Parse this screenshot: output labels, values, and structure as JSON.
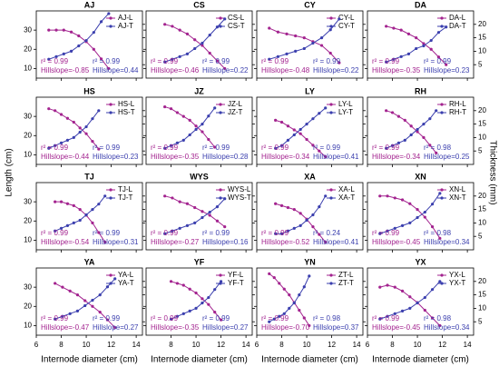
{
  "axis_labels": {
    "y": "Length (cm)",
    "y2": "Thickness (mm)",
    "x": "Internode diameter (cm)"
  },
  "chart_data": [
    {
      "type": "line",
      "title": "AJ",
      "x": [
        7,
        7.6,
        8.2,
        8.8,
        9.4,
        10,
        10.6,
        11.2,
        11.8
      ],
      "series": [
        {
          "name": "AJ-L",
          "color": "#a3238f",
          "values": [
            30,
            30,
            30,
            29,
            27,
            24,
            20,
            15,
            10
          ]
        },
        {
          "name": "AJ-T",
          "color": "#3b3fae",
          "axis": "y2",
          "values": [
            7,
            8,
            9,
            10,
            12,
            14,
            17,
            21,
            24
          ]
        }
      ],
      "annotations": [
        "r² = 0.99",
        "Hillslope=-0.85",
        "r² = 0.99",
        "Hillslope=0.44"
      ],
      "xlim": [
        6,
        14.5
      ],
      "xticks": [
        6,
        8,
        10,
        12,
        14
      ],
      "ylim": [
        5,
        40
      ],
      "yticks": [
        10,
        20,
        30
      ],
      "y2lim": [
        0,
        25
      ],
      "y2ticks": [
        5,
        10,
        15,
        20
      ]
    },
    {
      "type": "line",
      "title": "CS",
      "x": [
        7.5,
        8.1,
        8.7,
        9.3,
        9.9,
        10.5,
        11.1,
        11.7,
        12.3
      ],
      "series": [
        {
          "name": "CS-L",
          "color": "#a3238f",
          "values": [
            33,
            32,
            30,
            28,
            25,
            22,
            18,
            14,
            10
          ]
        },
        {
          "name": "CS-T",
          "color": "#3b3fae",
          "axis": "y2",
          "values": [
            6,
            7,
            8,
            9,
            11,
            13,
            16,
            19,
            22
          ]
        }
      ],
      "annotations": [
        "r² = 0.99",
        "Hillslope=-0.46",
        "r² = 0.99",
        "Hillslope=0.22"
      ],
      "xlim": [
        6,
        14.5
      ],
      "xticks": [
        8,
        10,
        12,
        14
      ],
      "ylim": [
        5,
        40
      ],
      "yticks": [
        10,
        20,
        30
      ],
      "y2lim": [
        0,
        25
      ],
      "y2ticks": [
        5,
        10,
        15,
        20
      ]
    },
    {
      "type": "line",
      "title": "CY",
      "x": [
        7,
        7.7,
        8.4,
        9.1,
        9.8,
        10.5,
        11.2,
        11.9,
        12.6
      ],
      "series": [
        {
          "name": "CY-L",
          "color": "#a3238f",
          "values": [
            31,
            29,
            28,
            27,
            26,
            24,
            22,
            18,
            13
          ]
        },
        {
          "name": "CY-T",
          "color": "#3b3fae",
          "axis": "y2",
          "values": [
            7,
            8,
            9,
            10,
            11,
            13,
            15,
            18,
            22
          ]
        }
      ],
      "annotations": [
        "r² = 0.99",
        "Hillslope=-0.48",
        "r² = 0.99",
        "Hillslope=0.22"
      ],
      "xlim": [
        6,
        14.5
      ],
      "xticks": [
        6,
        8,
        10,
        12,
        14
      ],
      "ylim": [
        5,
        40
      ],
      "yticks": [
        10,
        20,
        30
      ],
      "y2lim": [
        0,
        25
      ],
      "y2ticks": [
        5,
        10,
        15,
        20
      ]
    },
    {
      "type": "line",
      "title": "DA",
      "x": [
        7.5,
        8.1,
        8.7,
        9.3,
        9.9,
        10.5,
        11.1,
        11.7,
        12.3
      ],
      "series": [
        {
          "name": "DA-L",
          "color": "#a3238f",
          "values": [
            32,
            31,
            30,
            28,
            26,
            23,
            20,
            16,
            12
          ]
        },
        {
          "name": "DA-T",
          "color": "#3b3fae",
          "axis": "y2",
          "values": [
            6,
            7,
            8,
            9,
            11,
            12,
            14,
            17,
            19
          ]
        }
      ],
      "annotations": [
        "r² = 0.99",
        "Hillslope=-0.35",
        "r² = 0.99",
        "Hillslope=0.23"
      ],
      "xlim": [
        6,
        14.5
      ],
      "xticks": [
        6,
        8,
        10,
        12,
        14
      ],
      "ylim": [
        5,
        40
      ],
      "yticks": [
        10,
        20,
        30
      ],
      "y2lim": [
        0,
        25
      ],
      "y2ticks": [
        5,
        10,
        15,
        20
      ]
    },
    {
      "type": "line",
      "title": "HS",
      "x": [
        7,
        7.5,
        8,
        8.5,
        9,
        9.5,
        10,
        10.5,
        11
      ],
      "series": [
        {
          "name": "HS-L",
          "color": "#a3238f",
          "values": [
            34,
            33,
            31,
            29,
            27,
            24,
            21,
            17,
            13
          ]
        },
        {
          "name": "HS-T",
          "color": "#3b3fae",
          "axis": "y2",
          "values": [
            6,
            7,
            8,
            9,
            10,
            12,
            14,
            17,
            20
          ]
        }
      ],
      "annotations": [
        "r² = 0.99",
        "Hillslope=-0.44",
        "r² = 0.99",
        "Hillslope=0.23"
      ],
      "xlim": [
        6,
        14.5
      ],
      "xticks": [
        6,
        8,
        10,
        12,
        14
      ],
      "ylim": [
        5,
        40
      ],
      "yticks": [
        10,
        20,
        30
      ],
      "y2lim": [
        0,
        25
      ],
      "y2ticks": [
        5,
        10,
        15,
        20
      ]
    },
    {
      "type": "line",
      "title": "JZ",
      "x": [
        7.5,
        8,
        8.5,
        9,
        9.5,
        10,
        10.5,
        11,
        11.5
      ],
      "series": [
        {
          "name": "JZ-L",
          "color": "#a3238f",
          "values": [
            35,
            34,
            32,
            30,
            28,
            25,
            22,
            18,
            14
          ]
        },
        {
          "name": "JZ-T",
          "color": "#3b3fae",
          "axis": "y2",
          "values": [
            6,
            7,
            8,
            9,
            11,
            13,
            15,
            18,
            21
          ]
        }
      ],
      "annotations": [
        "r² = 0.99",
        "Hillslope=-0.35",
        "r² = 0.99",
        "Hillslope=0.28"
      ],
      "xlim": [
        6,
        14.5
      ],
      "xticks": [
        8,
        10,
        12,
        14
      ],
      "ylim": [
        5,
        40
      ],
      "yticks": [
        10,
        20,
        30
      ],
      "y2lim": [
        0,
        25
      ],
      "y2ticks": [
        5,
        10,
        15,
        20
      ]
    },
    {
      "type": "line",
      "title": "LY",
      "x": [
        7.5,
        8,
        8.5,
        9,
        9.5,
        10,
        10.5,
        11,
        11.5
      ],
      "series": [
        {
          "name": "LY-L",
          "color": "#a3238f",
          "values": [
            28,
            27,
            25,
            23,
            21,
            18,
            15,
            12,
            9
          ]
        },
        {
          "name": "LY-T",
          "color": "#3b3fae",
          "axis": "y2",
          "values": [
            6,
            7,
            9,
            11,
            13,
            15,
            17,
            19,
            21
          ]
        }
      ],
      "annotations": [
        "r² = 0.99",
        "Hillslope=-0.34",
        "r² = 0.99",
        "Hillslope=0.41"
      ],
      "xlim": [
        6,
        14.5
      ],
      "xticks": [
        6,
        8,
        10,
        12,
        14
      ],
      "ylim": [
        5,
        40
      ],
      "yticks": [
        10,
        20,
        30
      ],
      "y2lim": [
        0,
        25
      ],
      "y2ticks": [
        5,
        10,
        15,
        20
      ]
    },
    {
      "type": "line",
      "title": "RH",
      "x": [
        7.5,
        8,
        8.5,
        9,
        9.5,
        10,
        10.5,
        11,
        11.5
      ],
      "series": [
        {
          "name": "RH-L",
          "color": "#a3238f",
          "values": [
            33,
            32,
            30,
            28,
            25,
            22,
            19,
            15,
            11
          ]
        },
        {
          "name": "RH-T",
          "color": "#3b3fae",
          "axis": "y2",
          "values": [
            6,
            7,
            8,
            9,
            11,
            13,
            15,
            17,
            20
          ]
        }
      ],
      "annotations": [
        "r² = 0.99",
        "Hillslope=-0.34",
        "r² = 0.98",
        "Hillslope=0.25"
      ],
      "xlim": [
        6,
        14.5
      ],
      "xticks": [
        6,
        8,
        10,
        12,
        14
      ],
      "ylim": [
        5,
        40
      ],
      "yticks": [
        10,
        20,
        30
      ],
      "y2lim": [
        0,
        25
      ],
      "y2ticks": [
        5,
        10,
        15,
        20
      ]
    },
    {
      "type": "line",
      "title": "TJ",
      "x": [
        7.5,
        8,
        8.5,
        9,
        9.5,
        10,
        10.5,
        11,
        11.5
      ],
      "series": [
        {
          "name": "TJ-L",
          "color": "#a3238f",
          "values": [
            30,
            30,
            29,
            28,
            26,
            23,
            19,
            14,
            9
          ]
        },
        {
          "name": "TJ-T",
          "color": "#3b3fae",
          "axis": "y2",
          "values": [
            7,
            8,
            9,
            10,
            11,
            13,
            15,
            17,
            20
          ]
        }
      ],
      "annotations": [
        "r² = 0.99",
        "Hillslope=-0.54",
        "r² = 0.99",
        "Hillslope=0.31"
      ],
      "xlim": [
        6,
        14.5
      ],
      "xticks": [
        6,
        8,
        10,
        12,
        14
      ],
      "ylim": [
        5,
        40
      ],
      "yticks": [
        10,
        20,
        30
      ],
      "y2lim": [
        0,
        25
      ],
      "y2ticks": [
        5,
        10,
        15,
        20
      ]
    },
    {
      "type": "line",
      "title": "WYS",
      "x": [
        7.5,
        8.1,
        8.7,
        9.3,
        9.9,
        10.5,
        11.1,
        11.7,
        12.3
      ],
      "series": [
        {
          "name": "WYS-L",
          "color": "#a3238f",
          "values": [
            33,
            32,
            30,
            29,
            27,
            25,
            23,
            20,
            17
          ]
        },
        {
          "name": "WYS-T",
          "color": "#3b3fae",
          "axis": "y2",
          "values": [
            6,
            7,
            8,
            9,
            10,
            12,
            14,
            16,
            19
          ]
        }
      ],
      "annotations": [
        "r² = 0.99",
        "Hillslope=-0.27",
        "r² = 0.99",
        "Hillslope=0.16"
      ],
      "xlim": [
        6,
        14.5
      ],
      "xticks": [
        8,
        10,
        12,
        14
      ],
      "ylim": [
        5,
        40
      ],
      "yticks": [
        10,
        20,
        30
      ],
      "y2lim": [
        0,
        25
      ],
      "y2ticks": [
        5,
        10,
        15,
        20
      ]
    },
    {
      "type": "line",
      "title": "XA",
      "x": [
        7.5,
        8,
        8.5,
        9,
        9.5,
        10,
        10.5,
        11,
        11.5
      ],
      "series": [
        {
          "name": "XA-L",
          "color": "#a3238f",
          "values": [
            29,
            28,
            27,
            26,
            24,
            21,
            17,
            13,
            9
          ]
        },
        {
          "name": "XA-T",
          "color": "#3b3fae",
          "axis": "y2",
          "values": [
            6,
            6,
            7,
            8,
            9,
            11,
            13,
            16,
            20
          ]
        }
      ],
      "annotations": [
        "r² = 0.99",
        "Hillslope=-0.52",
        "r² = 0.24",
        "Hillslope=0.41"
      ],
      "xlim": [
        6,
        14.5
      ],
      "xticks": [
        6,
        8,
        10,
        12,
        14
      ],
      "ylim": [
        5,
        40
      ],
      "yticks": [
        10,
        20,
        30
      ],
      "y2lim": [
        0,
        25
      ],
      "y2ticks": [
        5,
        10,
        15,
        20
      ]
    },
    {
      "type": "line",
      "title": "XN",
      "x": [
        7,
        7.6,
        8.2,
        8.8,
        9.4,
        10,
        10.6,
        11.2,
        11.8
      ],
      "series": [
        {
          "name": "XN-L",
          "color": "#a3238f",
          "values": [
            33,
            33,
            32,
            31,
            29,
            26,
            22,
            17,
            11
          ]
        },
        {
          "name": "XN-T",
          "color": "#3b3fae",
          "axis": "y2",
          "values": [
            6,
            7,
            8,
            9,
            10,
            12,
            14,
            17,
            21
          ]
        }
      ],
      "annotations": [
        "r² = 0.99",
        "Hillslope=-0.45",
        "r² = 0.98",
        "Hillslope=0.34"
      ],
      "xlim": [
        6,
        14.5
      ],
      "xticks": [
        6,
        8,
        10,
        12,
        14
      ],
      "ylim": [
        5,
        40
      ],
      "yticks": [
        10,
        20,
        30
      ],
      "y2lim": [
        0,
        25
      ],
      "y2ticks": [
        5,
        10,
        15,
        20
      ]
    },
    {
      "type": "line",
      "title": "YA",
      "x": [
        7.5,
        8.1,
        8.7,
        9.3,
        9.9,
        10.5,
        11.1,
        11.7,
        12.3
      ],
      "series": [
        {
          "name": "YA-L",
          "color": "#a3238f",
          "values": [
            32,
            30,
            28,
            26,
            23,
            20,
            17,
            13,
            9
          ]
        },
        {
          "name": "YA-T",
          "color": "#3b3fae",
          "axis": "y2",
          "values": [
            6,
            7,
            8,
            9,
            11,
            13,
            15,
            18,
            21
          ]
        }
      ],
      "annotations": [
        "r² = 0.99",
        "Hillslope=-0.47",
        "r² = 0.99",
        "Hillslope=0.27"
      ],
      "xlim": [
        6,
        14.5
      ],
      "xticks": [
        6,
        8,
        10,
        12,
        14
      ],
      "ylim": [
        5,
        40
      ],
      "yticks": [
        10,
        20,
        30
      ],
      "y2lim": [
        0,
        25
      ],
      "y2ticks": [
        5,
        10,
        15,
        20
      ]
    },
    {
      "type": "line",
      "title": "YF",
      "x": [
        8,
        8.5,
        9,
        9.5,
        10,
        10.5,
        11,
        11.5,
        12
      ],
      "series": [
        {
          "name": "YF-L",
          "color": "#a3238f",
          "values": [
            33,
            32,
            31,
            29,
            27,
            24,
            21,
            17,
            13
          ]
        },
        {
          "name": "YF-T",
          "color": "#3b3fae",
          "axis": "y2",
          "values": [
            6,
            7,
            8,
            9,
            10,
            12,
            14,
            17,
            20
          ]
        }
      ],
      "annotations": [
        "r² = 0.99",
        "Hillslope=-0.35",
        "r² = 0.99",
        "Hillslope=0.27"
      ],
      "xlim": [
        6,
        14.5
      ],
      "xticks": [
        8,
        10,
        12,
        14
      ],
      "ylim": [
        5,
        40
      ],
      "yticks": [
        10,
        20,
        30
      ],
      "y2lim": [
        0,
        25
      ],
      "y2ticks": [
        5,
        10,
        15,
        20
      ]
    },
    {
      "type": "line",
      "title": "YN",
      "x": [
        7,
        7.4,
        7.8,
        8.2,
        8.6,
        9,
        9.4,
        9.8,
        10.2
      ],
      "series": [
        {
          "name": "ZT-L",
          "color": "#a3238f",
          "values": [
            37,
            35,
            32,
            29,
            26,
            22,
            18,
            14,
            10
          ]
        },
        {
          "name": "ZT-T",
          "color": "#3b3fae",
          "axis": "y2",
          "values": [
            5,
            6,
            7,
            8,
            10,
            12,
            15,
            18,
            22
          ]
        }
      ],
      "annotations": [
        "r² = 0.99",
        "Hillslope=-0.70",
        "r² = 0.98",
        "Hillslope=0.37"
      ],
      "xlim": [
        6,
        14.5
      ],
      "xticks": [
        6,
        8,
        10,
        12,
        14
      ],
      "ylim": [
        5,
        40
      ],
      "yticks": [
        10,
        20,
        30
      ],
      "y2lim": [
        0,
        25
      ],
      "y2ticks": [
        5,
        10,
        15,
        20
      ]
    },
    {
      "type": "line",
      "title": "YX",
      "x": [
        7,
        7.6,
        8.2,
        8.8,
        9.4,
        10,
        10.6,
        11.2,
        11.8
      ],
      "series": [
        {
          "name": "YX-L",
          "color": "#a3238f",
          "values": [
            30,
            31,
            30,
            28,
            25,
            22,
            18,
            14,
            10
          ]
        },
        {
          "name": "YX-T",
          "color": "#3b3fae",
          "axis": "y2",
          "values": [
            6,
            7,
            8,
            9,
            10,
            12,
            14,
            17,
            20
          ]
        }
      ],
      "annotations": [
        "r² = 0.99",
        "Hillslope=-0.45",
        "r² = 0.98",
        "Hillslope=0.34"
      ],
      "xlim": [
        6,
        14.5
      ],
      "xticks": [
        6,
        8,
        10,
        12,
        14
      ],
      "ylim": [
        5,
        40
      ],
      "yticks": [
        10,
        20,
        30
      ],
      "y2lim": [
        0,
        25
      ],
      "y2ticks": [
        5,
        10,
        15,
        20
      ]
    }
  ]
}
